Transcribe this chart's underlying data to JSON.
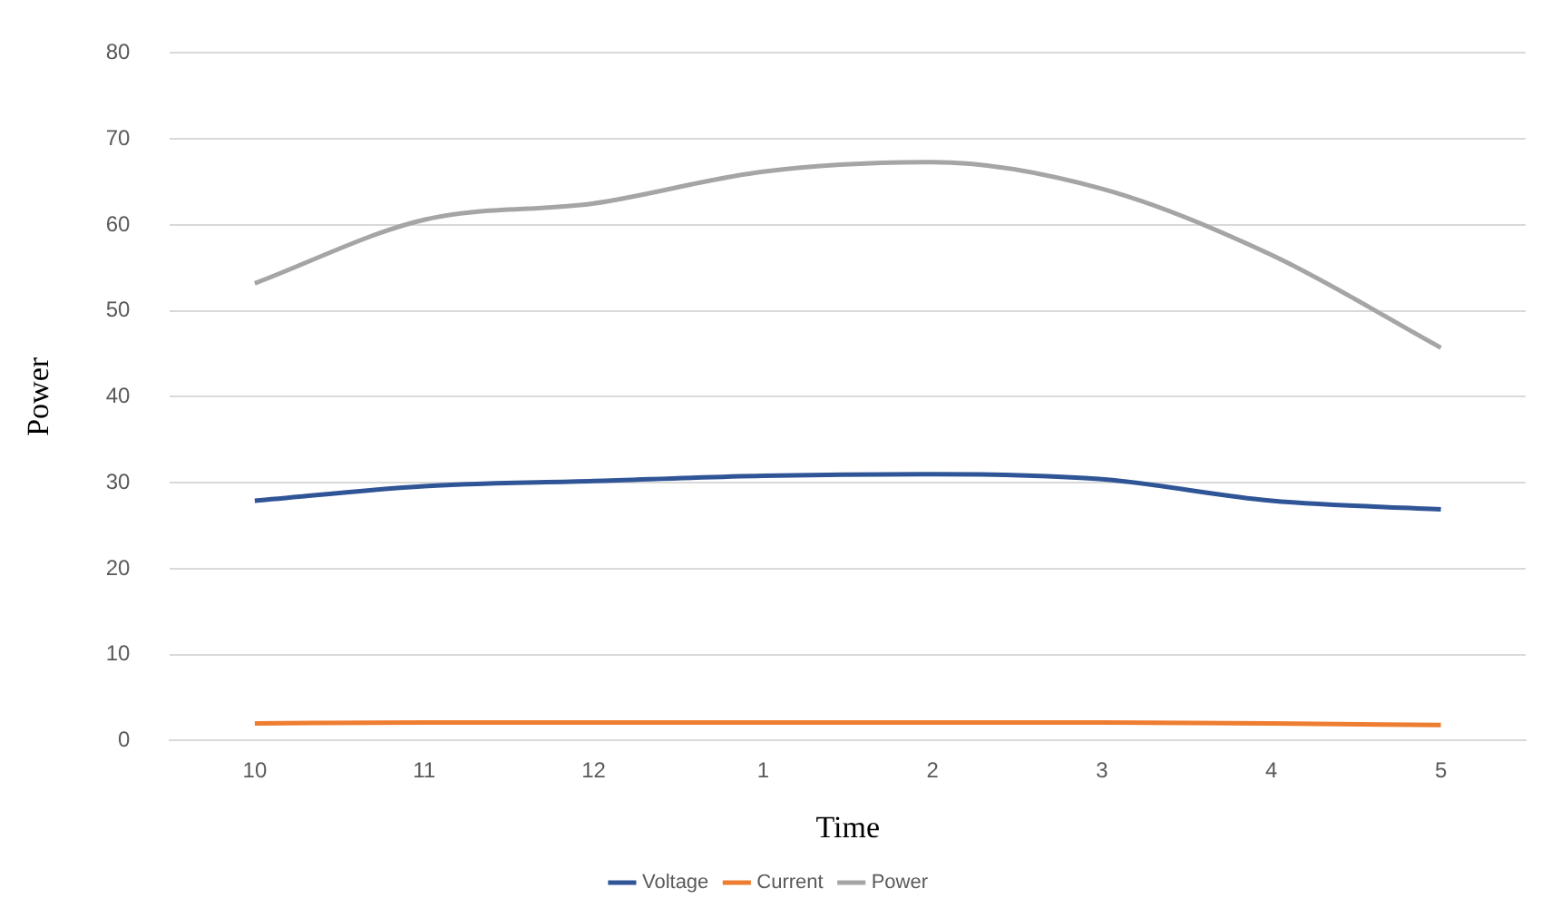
{
  "chart_data": {
    "type": "line",
    "xlabel": "Time",
    "ylabel": "Power",
    "categories": [
      "10",
      "11",
      "12",
      "1",
      "2",
      "3",
      "4",
      "5"
    ],
    "series": [
      {
        "name": "Voltage",
        "color": "#2f5597",
        "values": [
          27.9,
          29.6,
          30.2,
          30.8,
          31,
          30.4,
          27.9,
          26.9
        ]
      },
      {
        "name": "Current",
        "color": "#ed7d31",
        "values": [
          2,
          2.1,
          2.1,
          2.1,
          2.1,
          2.1,
          2,
          1.8
        ]
      },
      {
        "name": "Power",
        "color": "#a5a5a5",
        "values": [
          53.2,
          60.6,
          62.5,
          66.2,
          67.3,
          64.2,
          56.5,
          45.7
        ]
      }
    ],
    "ylim": [
      0,
      80
    ],
    "yticks": [
      0,
      10,
      20,
      30,
      40,
      50,
      60,
      70,
      80
    ],
    "grid": "y",
    "legend": "bottom",
    "marker": "none",
    "line_style": "solid"
  }
}
